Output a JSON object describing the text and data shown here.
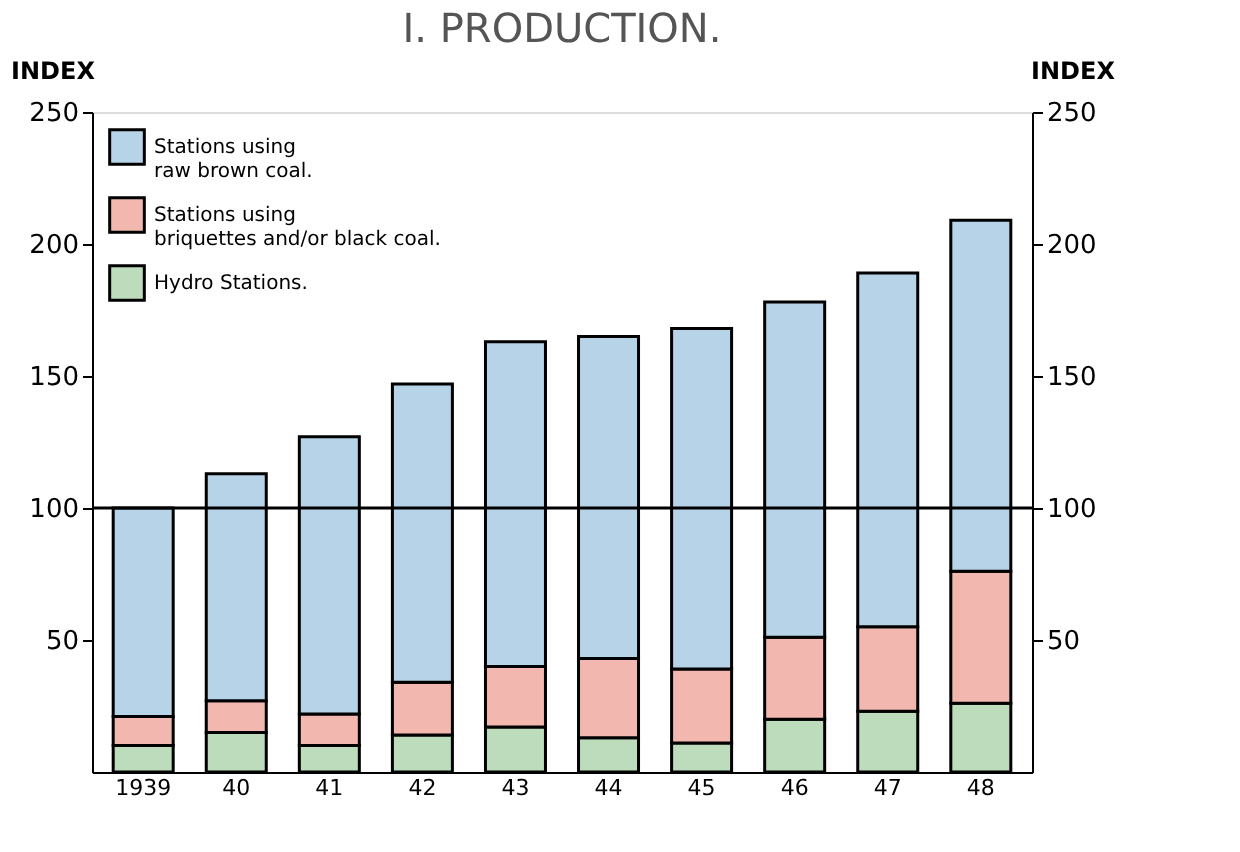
{
  "chart_data": {
    "type": "bar",
    "title": "I. PRODUCTION.",
    "ylabel": "INDEX",
    "y2label": "INDEX",
    "categories": [
      "1939",
      "40",
      "41",
      "42",
      "43",
      "44",
      "45",
      "46",
      "47",
      "48"
    ],
    "stacked": true,
    "series": [
      {
        "name": "Hydro Stations.",
        "color": "#bcdcbc",
        "values": [
          10,
          15,
          10,
          14,
          17,
          13,
          11,
          20,
          23,
          26
        ]
      },
      {
        "name": "Stations using briquettes and/or black coal.",
        "color": "#f2b8b0",
        "values": [
          11,
          12,
          12,
          20,
          23,
          30,
          28,
          31,
          32,
          50
        ]
      },
      {
        "name": "Stations using raw brown coal.",
        "color": "#b7d3e8",
        "values": [
          79,
          86,
          105,
          113,
          123,
          122,
          129,
          127,
          134,
          133
        ]
      }
    ],
    "ylim": [
      0,
      250
    ],
    "yticks": [
      50,
      100,
      150,
      200,
      250
    ],
    "y2lim": [
      0,
      250
    ],
    "y2ticks": [
      50,
      100,
      150,
      200,
      250
    ],
    "ref_lines": [
      {
        "axis": "y",
        "value": 100,
        "color": "#000000"
      }
    ],
    "legend": "top left",
    "grid": false
  }
}
